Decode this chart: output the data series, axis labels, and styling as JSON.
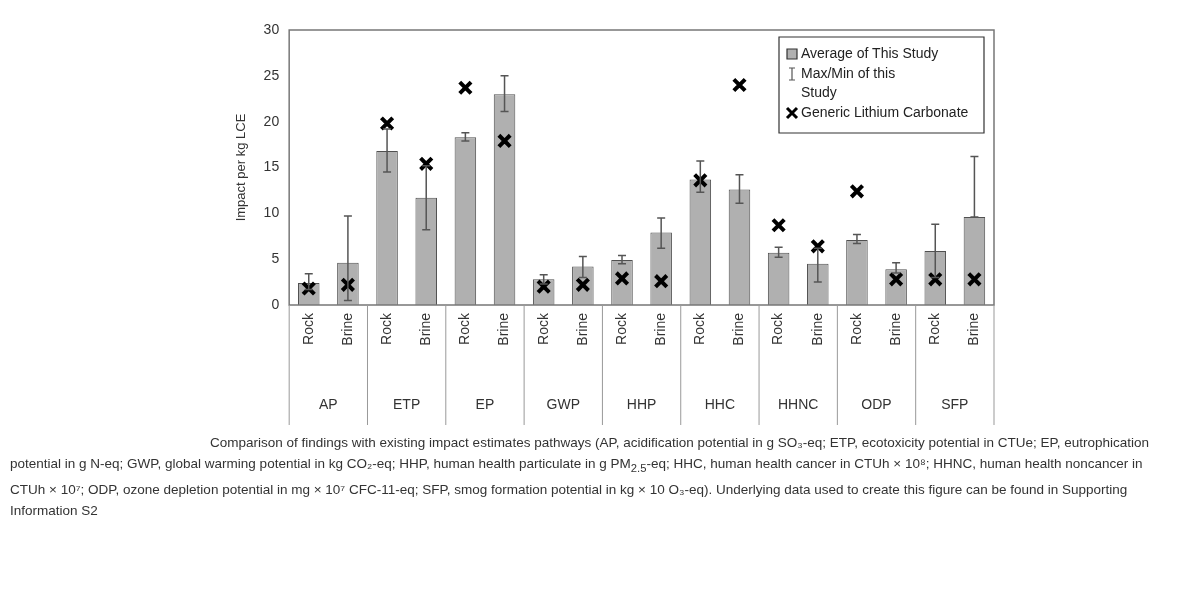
{
  "chart_data": {
    "type": "bar",
    "ylabel": "Impact per kg LCE",
    "categories": [
      "Rock",
      "Brine",
      "Rock",
      "Brine",
      "Rock",
      "Brine",
      "Rock",
      "Brine",
      "Rock",
      "Brine",
      "Rock",
      "Brine",
      "Rock",
      "Brine",
      "Rock",
      "Brine",
      "Rock",
      "Brine"
    ],
    "series": [
      {
        "name": "Average of This Study",
        "color": "#b0b0b0",
        "values": [
          2.4,
          4.6,
          16.8,
          11.7,
          18.3,
          23.0,
          2.8,
          4.2,
          4.9,
          7.9,
          13.7,
          12.6,
          5.7,
          4.5,
          7.1,
          3.9,
          5.9,
          9.6
        ],
        "errors": [
          [
            1.7,
            3.4
          ],
          [
            0.5,
            9.7
          ],
          [
            14.5,
            19.2
          ],
          [
            8.2,
            15.2
          ],
          [
            17.9,
            18.8
          ],
          [
            21.1,
            25.0
          ],
          [
            2.3,
            3.3
          ],
          [
            3.0,
            5.3
          ],
          [
            4.5,
            5.4
          ],
          [
            6.2,
            9.5
          ],
          [
            12.3,
            15.7
          ],
          [
            11.1,
            14.2
          ],
          [
            5.2,
            6.3
          ],
          [
            2.5,
            6.2
          ],
          [
            6.7,
            7.7
          ],
          [
            3.5,
            4.6
          ],
          [
            3.0,
            8.8
          ],
          [
            9.6,
            16.2
          ]
        ]
      },
      {
        "name": "Generic Lithium Carbonate",
        "type": "scatter",
        "color": "#000000",
        "values": [
          1.8,
          2.2,
          19.8,
          15.4,
          23.7,
          17.9,
          2.0,
          2.2,
          2.9,
          2.6,
          13.6,
          24.0,
          8.7,
          6.4,
          12.4,
          2.8,
          2.8,
          2.8
        ]
      }
    ],
    "ylim": [
      0,
      30
    ],
    "yticks": [
      0,
      5,
      10,
      15,
      20,
      25,
      30
    ],
    "grid": false,
    "legend": "top right",
    "marker": "cross",
    "annotations": [
      "Max/Min of this Study",
      "AP",
      "ETP",
      "EP",
      "GWP",
      "HHP",
      "HHC",
      "HHNC",
      "ODP",
      "SFP",
      "Comparison of findings with existing impact estimates pathways (AP, acidification potential in g SO₃-eq; ETP, ecotoxicity potential in CTUe; EP, eutrophication potential in g N-eq; GWP, global warming potential in kg CO₂-eq; HHP, human health particulate in g PM$_{2.5}$-eq; HHC, human health cancer in CTUh × 10⁸; HHNC, human health noncancer in CTUh × 10⁷; ODP, ozone depletion potential in mg × 10⁷ CFC-11-eq; SFP, smog formation potential in kg × 10 O₃-eq). Underlying data used to create this figure can be found in Supporting Information S2"
    ]
  }
}
